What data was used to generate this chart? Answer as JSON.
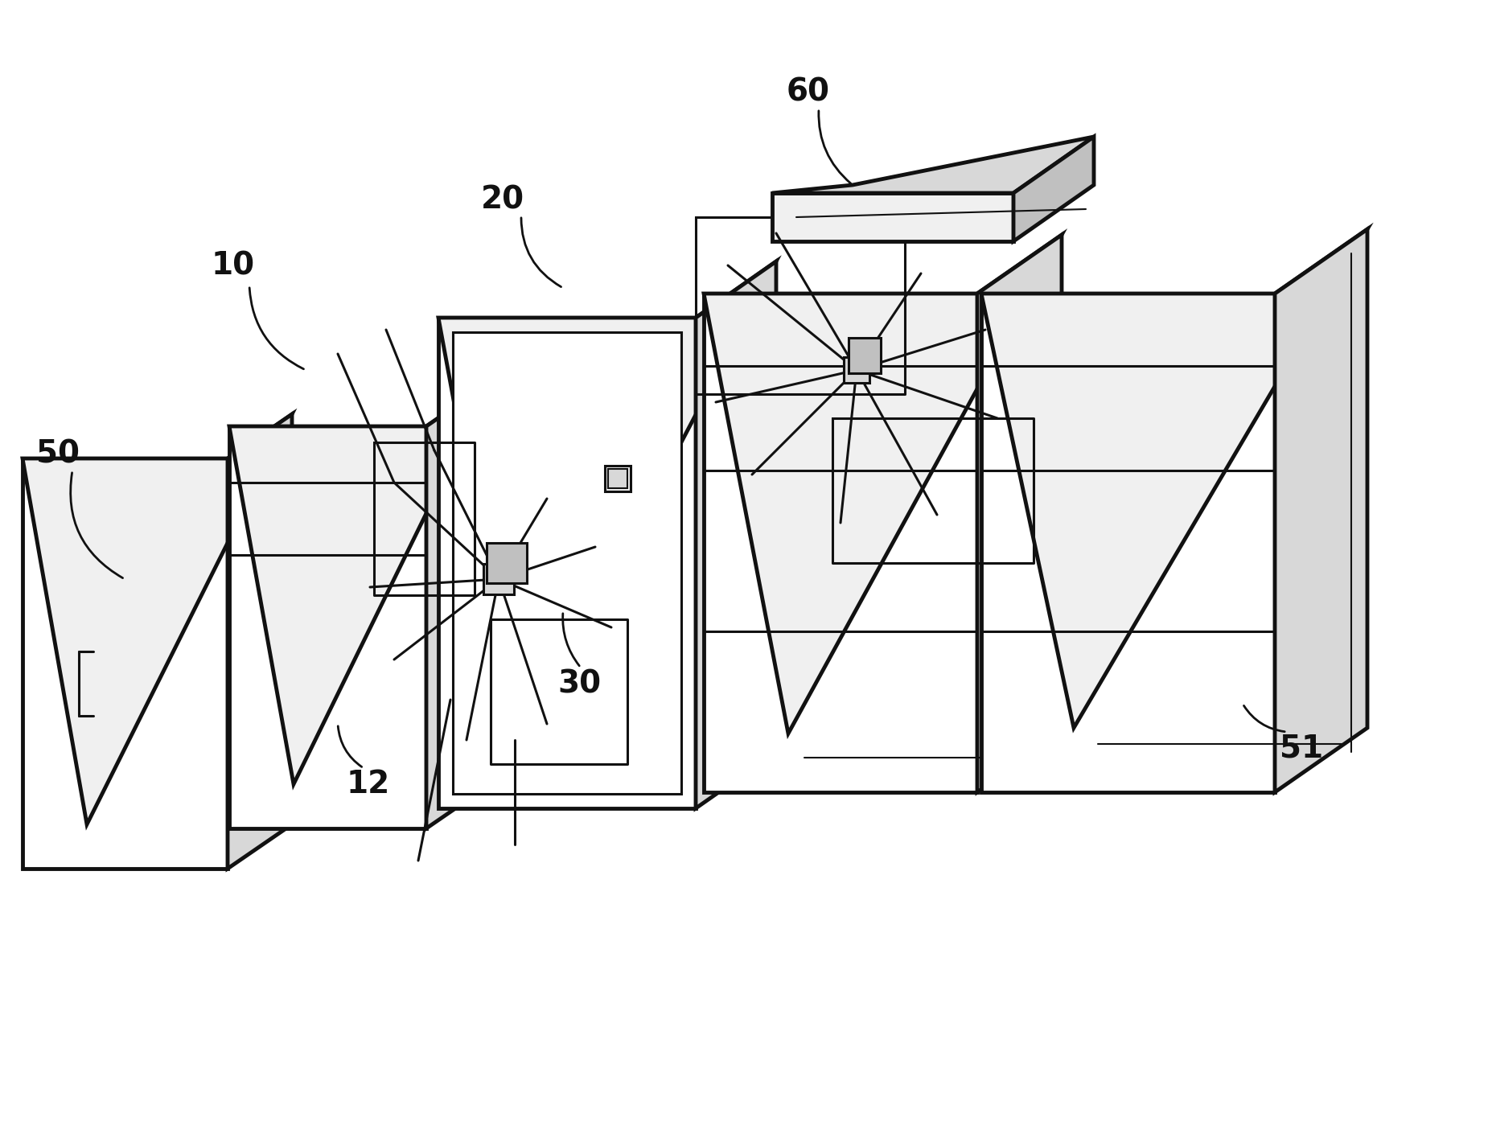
{
  "background_color": "#ffffff",
  "line_color": "#111111",
  "lw_thick": 3.5,
  "lw_med": 2.2,
  "lw_thin": 1.5,
  "label_fontsize": 28,
  "label_fontweight": "bold",
  "fill_white": "#ffffff",
  "fill_light": "#f0f0f0",
  "fill_mid": "#d8d8d8",
  "fill_dark": "#c0c0c0"
}
